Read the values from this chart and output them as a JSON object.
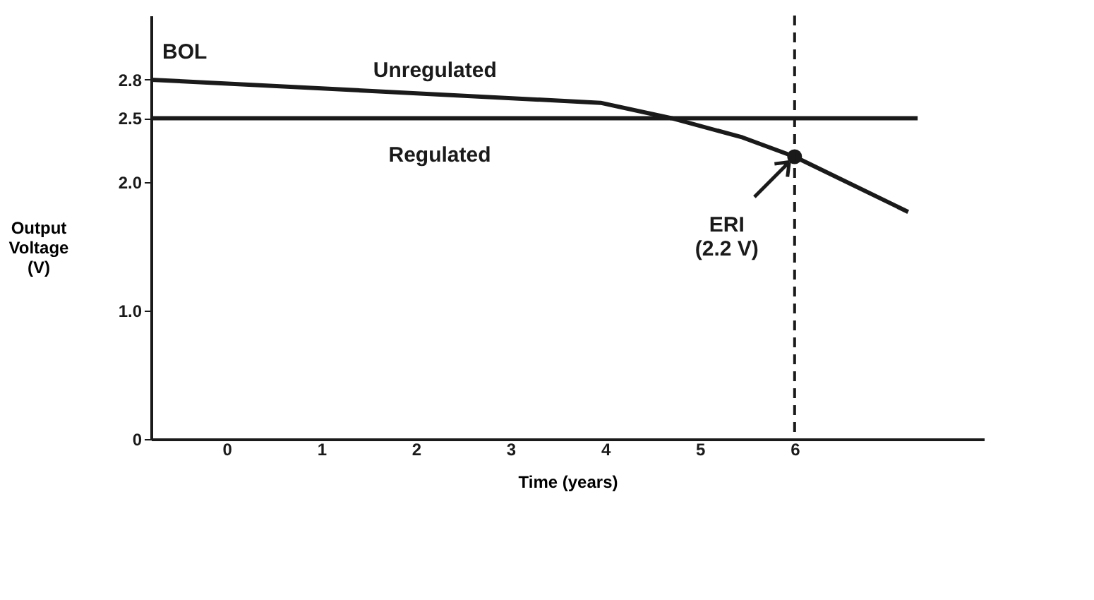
{
  "chart_data": {
    "type": "line",
    "xlabel": "Time (years)",
    "ylabel": "Output\nVoltage\n(V)",
    "xlim": [
      -0.8,
      8
    ],
    "ylim": [
      0,
      3.3
    ],
    "xticks": [
      0,
      1,
      2,
      3,
      4,
      5,
      6
    ],
    "yticks": [
      0,
      {
        "value": 1,
        "label": "1.0"
      },
      {
        "value": 2,
        "label": "2.0"
      },
      2.5,
      2.8
    ],
    "grid": false,
    "marker": "none",
    "line_style": "solid",
    "series": [
      {
        "name": "Unregulated",
        "color": "#1a1a1a",
        "x": [
          -0.8,
          3.95,
          4.7,
          5.45,
          6,
          7.2
        ],
        "values": [
          2.8,
          2.62,
          2.5,
          2.35,
          2.2,
          1.77
        ]
      },
      {
        "name": "Regulated",
        "color": "#1a1a1a",
        "x": [
          -0.8,
          7.3
        ],
        "values": [
          2.5,
          2.5
        ]
      },
      {
        "type": "scatter",
        "marker": "circle",
        "color": "#1a1a1a",
        "x": [
          6
        ],
        "values": [
          2.2
        ]
      }
    ],
    "ref_lines": [
      {
        "axis": "x",
        "value": 6,
        "line_style": "dashed",
        "color": "#1a1a1a"
      }
    ],
    "annotations": [
      {
        "text": "BOL",
        "x": -0.8,
        "y": 2.8
      },
      {
        "text": "ERI\n(2.2 V)",
        "x": 6,
        "y": 2.2
      }
    ]
  }
}
